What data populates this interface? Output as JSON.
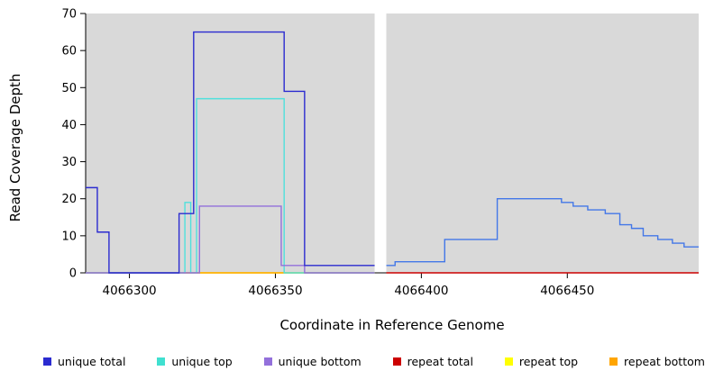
{
  "chart_data": {
    "type": "line",
    "subtype": "step-coverage-plot",
    "title": "",
    "xlabel": "Coordinate in Reference Genome",
    "ylabel": "Read Coverage Depth",
    "xlim": [
      4066285,
      4066495
    ],
    "ylim": [
      0,
      70
    ],
    "xticks": [
      4066300,
      4066350,
      4066400,
      4066450
    ],
    "yticks": [
      0,
      10,
      20,
      30,
      40,
      50,
      60,
      70
    ],
    "plot_bg": "#d9d9d9",
    "gap_region": [
      4066384,
      4066388
    ],
    "grid": false,
    "series": [
      {
        "name": "repeat top",
        "color": "#FFFF00",
        "points": [
          [
            4066285,
            0
          ],
          [
            4066384,
            0
          ]
        ]
      },
      {
        "name": "repeat bottom",
        "color": "#FFA500",
        "points": [
          [
            4066285,
            0
          ],
          [
            4066384,
            0
          ]
        ]
      },
      {
        "name": "repeat total",
        "color": "#CC0000",
        "points": [
          [
            4066388,
            0
          ],
          [
            4066495,
            0
          ]
        ]
      },
      {
        "name": "unique top",
        "color": "#4FE0DC",
        "points": [
          [
            4066285,
            0
          ],
          [
            4066319,
            19
          ],
          [
            4066321,
            0
          ],
          [
            4066323,
            47
          ],
          [
            4066353,
            0
          ],
          [
            4066384,
            0
          ]
        ]
      },
      {
        "name": "unique bottom",
        "color": "#9370DB",
        "points": [
          [
            4066285,
            0
          ],
          [
            4066324,
            18
          ],
          [
            4066352,
            2
          ],
          [
            4066360,
            0
          ],
          [
            4066384,
            0
          ]
        ]
      },
      {
        "name": "unique total",
        "color": "#2B2BD0",
        "points": [
          [
            4066285,
            23
          ],
          [
            4066289,
            11
          ],
          [
            4066293,
            0
          ],
          [
            4066317,
            16
          ],
          [
            4066322,
            65
          ],
          [
            4066353,
            49
          ],
          [
            4066360,
            2
          ],
          [
            4066384,
            2
          ]
        ]
      },
      {
        "name": "unique total right",
        "color": "#4377E8",
        "points": [
          [
            4066388,
            2
          ],
          [
            4066391,
            3
          ],
          [
            4066408,
            9
          ],
          [
            4066426,
            20
          ],
          [
            4066448,
            19
          ],
          [
            4066452,
            18
          ],
          [
            4066457,
            17
          ],
          [
            4066463,
            16
          ],
          [
            4066468,
            13
          ],
          [
            4066472,
            12
          ],
          [
            4066476,
            10
          ],
          [
            4066481,
            9
          ],
          [
            4066486,
            8
          ],
          [
            4066490,
            7
          ],
          [
            4066495,
            7
          ]
        ]
      }
    ]
  },
  "legend": {
    "items": [
      {
        "label": "unique total",
        "color": "#2B2BD0"
      },
      {
        "label": "unique top",
        "color": "#40E0D0"
      },
      {
        "label": "unique bottom",
        "color": "#9370DB"
      },
      {
        "label": "repeat total",
        "color": "#CC0000"
      },
      {
        "label": "repeat top",
        "color": "#FFFF00"
      },
      {
        "label": "repeat bottom",
        "color": "#FFA500"
      }
    ]
  }
}
